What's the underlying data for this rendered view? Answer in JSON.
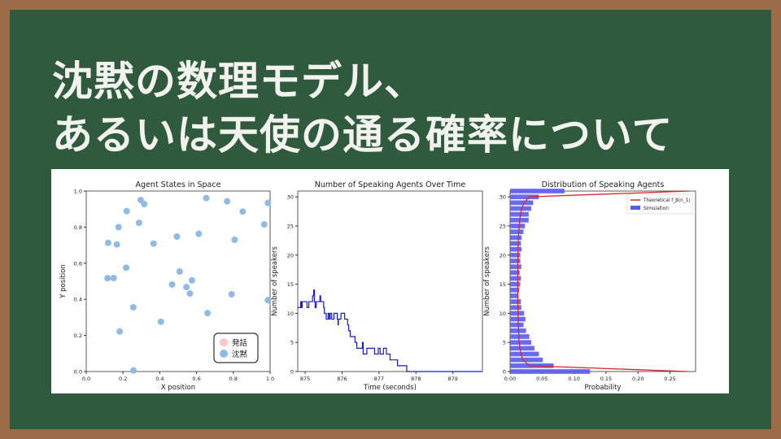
{
  "slide": {
    "title_line1": "沈黙の数理モデル、",
    "title_line2": "あるいは天使の通る確率について",
    "colors": {
      "board": "#2f5a3d",
      "frame": "#9b6c47"
    }
  },
  "chart_data": [
    {
      "type": "scatter",
      "title": "Agent States in Space",
      "xlabel": "X position",
      "ylabel": "Y position",
      "xlim": [
        0,
        1
      ],
      "ylim": [
        0,
        1
      ],
      "xticks": [
        "0.0",
        "0.2",
        "0.4",
        "0.6",
        "0.8",
        "1.0"
      ],
      "yticks": [
        "0.0",
        "0.2",
        "0.4",
        "0.6",
        "0.8",
        "1.0"
      ],
      "legend": {
        "placement": "lower-right",
        "entries": [
          {
            "label": "発話",
            "color": "#f7c6c6"
          },
          {
            "label": "沈黙",
            "color": "#8fbbe6"
          }
        ]
      },
      "series": [
        {
          "name": "沈黙",
          "color": "#8fbbe6",
          "points": [
            [
              0.257,
              0.006
            ],
            [
              0.119,
              0.713
            ],
            [
              0.167,
              0.704
            ],
            [
              0.176,
              0.8
            ],
            [
              0.22,
              0.889
            ],
            [
              0.296,
              0.95
            ],
            [
              0.315,
              0.928
            ],
            [
              0.287,
              0.824
            ],
            [
              0.366,
              0.709
            ],
            [
              0.493,
              0.748
            ],
            [
              0.612,
              0.763
            ],
            [
              0.653,
              0.961
            ],
            [
              0.766,
              0.943
            ],
            [
              0.851,
              0.886
            ],
            [
              0.988,
              0.934
            ],
            [
              0.968,
              0.815
            ],
            [
              0.807,
              0.73
            ],
            [
              0.217,
              0.575
            ],
            [
              0.116,
              0.517
            ],
            [
              0.149,
              0.518
            ],
            [
              0.508,
              0.554
            ],
            [
              0.467,
              0.482
            ],
            [
              0.545,
              0.468
            ],
            [
              0.575,
              0.505
            ],
            [
              0.564,
              0.432
            ],
            [
              0.791,
              0.428
            ],
            [
              0.988,
              0.395
            ],
            [
              0.256,
              0.356
            ],
            [
              0.66,
              0.324
            ],
            [
              0.406,
              0.276
            ],
            [
              0.182,
              0.222
            ]
          ]
        },
        {
          "name": "発話",
          "color": "#f7c6c6",
          "points": []
        }
      ]
    },
    {
      "type": "line",
      "title": "Number of Speaking Agents Over Time",
      "xlabel": "Time (seconds)",
      "ylabel": "Number of speakers",
      "xlim": [
        874.8,
        879.8
      ],
      "ylim": [
        0,
        31
      ],
      "xticks": [
        "875",
        "876",
        "877",
        "878",
        "879"
      ],
      "yticks": [
        "0",
        "5",
        "10",
        "15",
        "20",
        "25",
        "30"
      ],
      "color": "#1a1acc",
      "step": true,
      "x": [
        874.8,
        874.88,
        874.9,
        874.92,
        875.05,
        875.1,
        875.2,
        875.23,
        875.25,
        875.27,
        875.3,
        875.4,
        875.42,
        875.5,
        875.52,
        875.57,
        875.62,
        875.65,
        875.68,
        875.72,
        875.78,
        875.87,
        875.89,
        875.9,
        875.97,
        876.07,
        876.15,
        876.18,
        876.22,
        876.35,
        876.4,
        876.55,
        876.57,
        876.67,
        876.88,
        876.98,
        877.03,
        877.12,
        877.2,
        877.3,
        877.5,
        877.75,
        879.8
      ],
      "y": [
        11,
        12,
        11,
        12,
        11,
        12,
        13,
        14,
        12,
        11,
        12,
        13,
        12,
        11,
        10,
        9,
        10,
        9,
        10,
        9,
        10,
        9,
        8,
        9,
        10,
        9,
        8,
        7,
        6,
        5,
        4,
        5,
        3,
        4,
        3,
        4,
        3,
        4,
        3,
        2,
        1,
        0,
        0
      ]
    },
    {
      "type": "bar",
      "orientation": "horizontal",
      "title": "Distribution of Speaking Agents",
      "xlabel": "Probability",
      "ylabel": "Number of speakers",
      "xlim": [
        0,
        0.29
      ],
      "ylim": [
        0,
        31
      ],
      "xticks": [
        "0.00",
        "0.05",
        "0.10",
        "0.15",
        "0.20",
        "0.25"
      ],
      "yticks": [
        "0",
        "5",
        "10",
        "15",
        "20",
        "25",
        "30"
      ],
      "legend": {
        "placement": "top-right",
        "entries": [
          {
            "label": "Theoretical f_β(n_1)",
            "color": "#d62728"
          },
          {
            "label": "Simulation",
            "color": "#5b5bf0"
          }
        ]
      },
      "categories": [
        0,
        1,
        2,
        3,
        4,
        5,
        6,
        7,
        8,
        9,
        10,
        11,
        12,
        13,
        14,
        15,
        16,
        17,
        18,
        19,
        20,
        21,
        22,
        23,
        24,
        25,
        26,
        27,
        28,
        29,
        30,
        31
      ],
      "series": [
        {
          "name": "Simulation",
          "values": [
            0.125,
            0.068,
            0.051,
            0.045,
            0.038,
            0.033,
            0.03,
            0.025,
            0.021,
            0.024,
            0.022,
            0.0175,
            0.017,
            0.013,
            0.0145,
            0.016,
            0.017,
            0.015,
            0.0175,
            0.016,
            0.016,
            0.018,
            0.017,
            0.018,
            0.021,
            0.023,
            0.029,
            0.029,
            0.033,
            0.036,
            0.045,
            0.085
          ]
        },
        {
          "name": "Theoretical f_β(n_1)",
          "type": "line",
          "n": [
            0,
            1,
            2,
            3,
            5,
            8,
            12,
            15,
            19,
            23,
            26,
            28,
            29,
            30,
            31
          ],
          "p": [
            0.277,
            0.03,
            0.02,
            0.017,
            0.014,
            0.013,
            0.012,
            0.012,
            0.012,
            0.013,
            0.015,
            0.018,
            0.022,
            0.03,
            0.28
          ]
        }
      ]
    }
  ]
}
